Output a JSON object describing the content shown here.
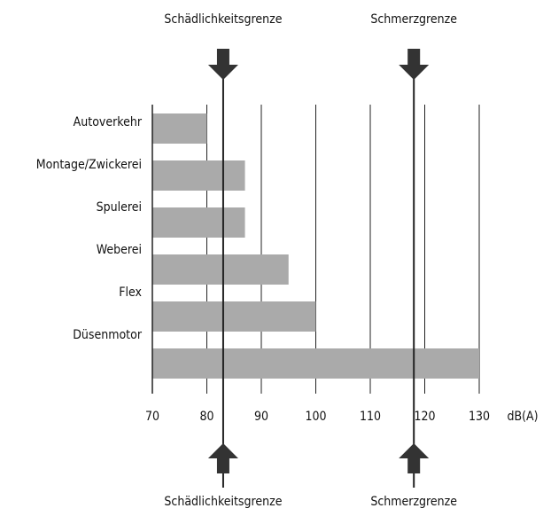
{
  "chart_data": {
    "type": "bar",
    "orientation": "horizontal",
    "categories": [
      "Autoverkehr",
      "Montage/Zwickerei",
      "Spulerei",
      "Weberei",
      "Flex",
      "Düsenmotor"
    ],
    "values": [
      80,
      87,
      87,
      95,
      100,
      130
    ],
    "color": "#aaaaaa",
    "xlim": [
      70,
      130
    ],
    "xticks": [
      70,
      80,
      90,
      100,
      110,
      120,
      130
    ],
    "x_label": "dB(A)",
    "grid": true,
    "thresholds": [
      {
        "name": "Schädlichkeitsgrenze",
        "value": 83
      },
      {
        "name": "Schmerzgrenze",
        "value": 118
      }
    ]
  }
}
